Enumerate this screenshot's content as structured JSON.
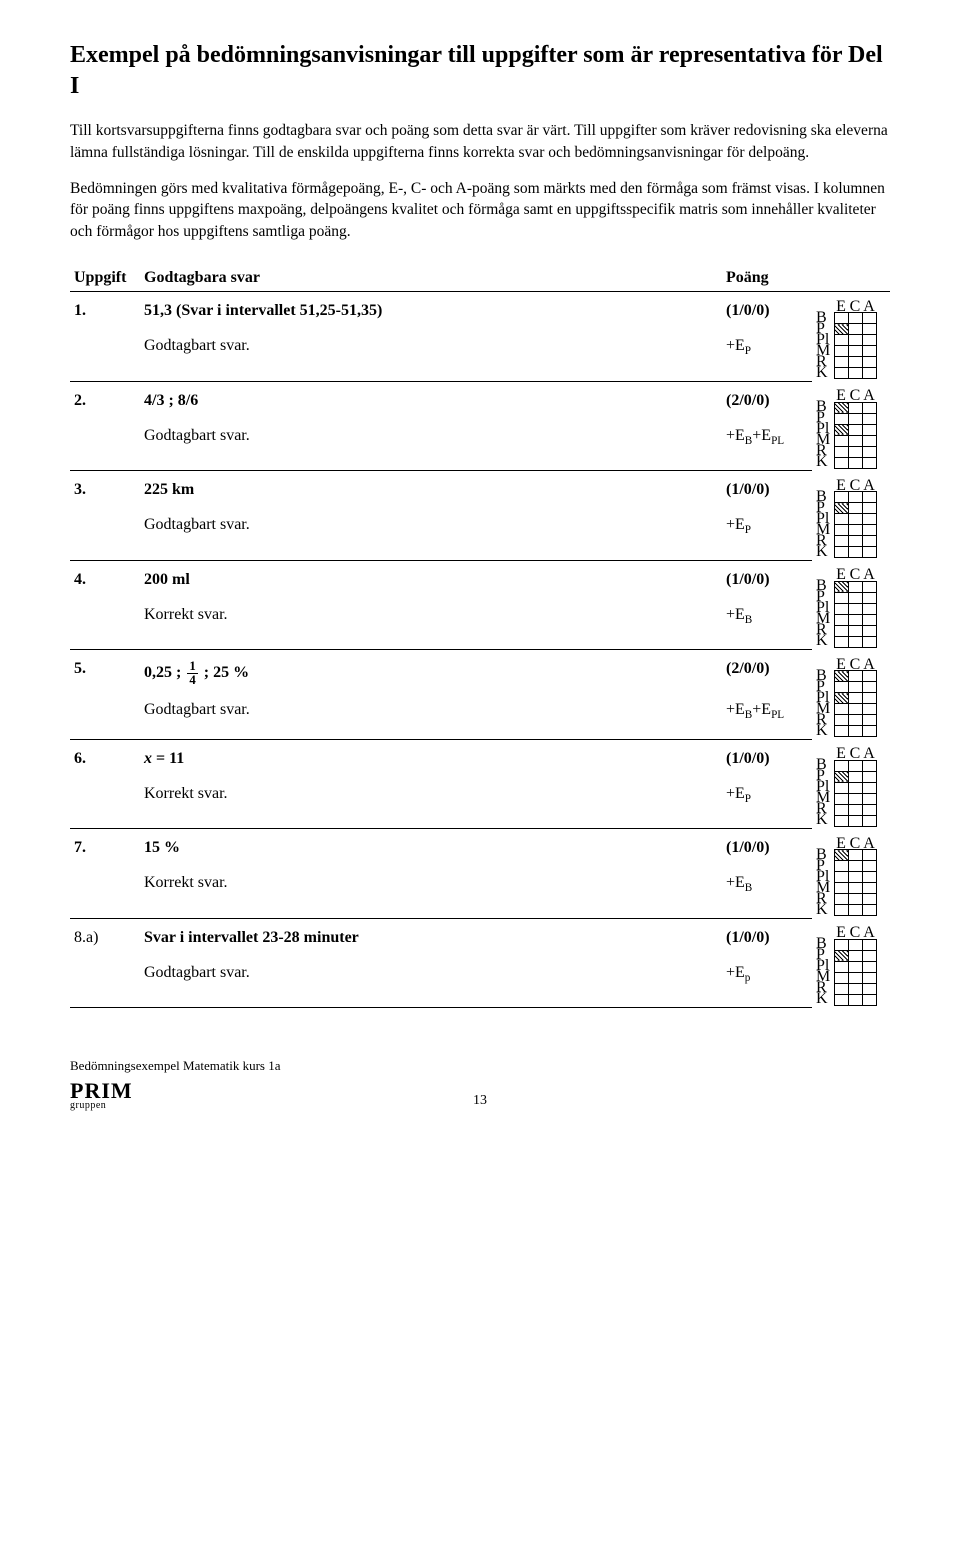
{
  "title": "Exempel på bedömningsanvisningar till uppgifter som är representativa för Del I",
  "para1": "Till kortsvarsuppgifterna finns godtagbara svar och poäng som detta svar är värt. Till uppgifter som kräver redovisning ska eleverna lämna fullständiga lösningar. Till de enskilda uppgifterna finns korrekta svar och bedömningsanvisningar för delpoäng.",
  "para2": "Bedömningen görs med kvalitativa förmågepoäng, E-, C- och A-poäng som märkts med den förmåga som främst visas. I kolumnen för poäng finns uppgiftens maxpoäng, del­poängens kvalitet och förmåga samt en uppgiftsspecifik matris som innehåller kvaliteter och förmågor hos uppgiftens samtliga poäng.",
  "headers": {
    "uppgift": "Uppgift",
    "answer": "Godtagbara svar",
    "points": "Poäng"
  },
  "matrix_labels": {
    "cols": [
      "E",
      "C",
      "A"
    ],
    "rows": [
      "B",
      "P",
      "Pl",
      "M",
      "R",
      "K"
    ]
  },
  "tasks": [
    {
      "num": "1.",
      "answer_html": "51,3 (Svar i intervallet 51,25-51,35)",
      "points": "(1/0/0)",
      "sub_label": "Godtagbart svar.",
      "sub_score_html": "+E<span class='sub'>P</span>",
      "matrix": {
        "P": [
          0
        ]
      }
    },
    {
      "num": "2.",
      "answer_html": "4/3 ; 8/6",
      "points": "(2/0/0)",
      "sub_label": "Godtagbart svar.",
      "sub_score_html": "+E<span class='sub'>B</span>+E<span class='sub'>PL</span>",
      "matrix": {
        "B": [
          0
        ],
        "Pl": [
          0
        ]
      }
    },
    {
      "num": "3.",
      "answer_html": "225 km",
      "points": "(1/0/0)",
      "sub_label": "Godtagbart svar.",
      "sub_score_html": "+E<span class='sub'>P</span>",
      "matrix": {
        "P": [
          0
        ]
      }
    },
    {
      "num": "4.",
      "answer_html": "200 ml",
      "points": "(1/0/0)",
      "sub_label": "Korrekt svar.",
      "sub_score_html": "+E<span class='sub'>B</span>",
      "matrix": {
        "B": [
          0
        ]
      }
    },
    {
      "num": "5.",
      "answer_html": "0,25 ; <span class='frac'><span class='num'>1</span><span class='den'>4</span></span> ; 25 %",
      "points": "(2/0/0)",
      "sub_label": "Godtagbart svar.",
      "sub_score_html": "+E<span class='sub'>B</span>+E<span class='sub'>PL</span>",
      "matrix": {
        "B": [
          0
        ],
        "Pl": [
          0
        ]
      }
    },
    {
      "num": "6.",
      "answer_html": "<span class='italic'>x</span> = 11",
      "points": "(1/0/0)",
      "sub_label": "Korrekt svar.",
      "sub_score_html": "+E<span class='sub'>P</span>",
      "matrix": {
        "P": [
          0
        ]
      }
    },
    {
      "num": "7.",
      "answer_html": "15 %",
      "points": "(1/0/0)",
      "sub_label": "Korrekt svar.",
      "sub_score_html": "+E<span class='sub'>B</span>",
      "matrix": {
        "B": [
          0
        ]
      }
    },
    {
      "num": "8.a)",
      "answer_html": "Svar i intervallet 23-28 minuter",
      "points": "(1/0/0)",
      "sub_label": "Godtagbart svar.",
      "sub_score_html": "+E<span class='sub'>p</span>",
      "matrix": {
        "P": [
          0
        ]
      }
    }
  ],
  "footer": {
    "text": "Bedömningsexempel Matematik kurs 1a",
    "logo": "PRIM",
    "logo_sub": "gruppen",
    "page": "13"
  }
}
